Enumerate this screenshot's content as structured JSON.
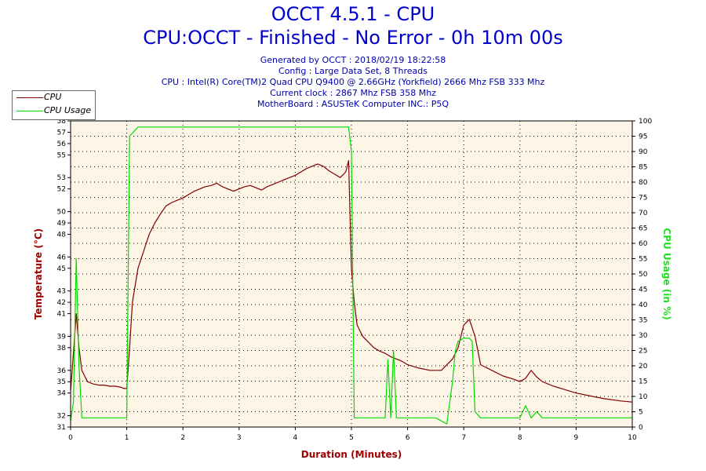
{
  "header": {
    "title": "OCCT 4.5.1 - CPU",
    "subtitle": "CPU:OCCT - Finished - No Error - 0h 10m 00s",
    "info_lines": [
      "Generated by OCCT : 2018/02/19 18:22:58",
      "Config : Large Data Set, 8 Threads",
      "CPU : Intel(R) Core(TM)2 Quad CPU Q9400 @ 2.66GHz (Yorkfield) 2666 Mhz FSB 333 Mhz",
      "Current clock : 2867 Mhz FSB 358 Mhz",
      "MotherBoard : ASUSTeK Computer INC.: P5Q"
    ]
  },
  "legend": [
    {
      "label": "CPU",
      "color": "#800000"
    },
    {
      "label": "CPU Usage",
      "color": "#00dd00"
    }
  ],
  "chart_data": {
    "type": "line",
    "xlabel": "Duration (Minutes)",
    "ylabel_left": "Temperature (°C)",
    "ylabel_right": "CPU Usage (in %)",
    "xlim": [
      0,
      10
    ],
    "ylim_left": [
      31,
      58
    ],
    "ylim_right": [
      0,
      100
    ],
    "x_ticks": [
      0,
      1,
      2,
      3,
      4,
      5,
      6,
      7,
      8,
      9,
      10
    ],
    "y_left_ticks": [
      31,
      32,
      34,
      35,
      36,
      38,
      39,
      41,
      42,
      43,
      45,
      46,
      48,
      49,
      50,
      52,
      53,
      55,
      56,
      57,
      58
    ],
    "y_right_ticks": [
      0,
      5,
      10,
      15,
      20,
      25,
      30,
      35,
      40,
      45,
      50,
      55,
      60,
      65,
      70,
      75,
      80,
      85,
      90,
      95,
      100
    ],
    "grid": true,
    "series": [
      {
        "name": "CPU",
        "axis": "left",
        "color": "#800000",
        "x": [
          0,
          0.05,
          0.1,
          0.15,
          0.2,
          0.25,
          0.3,
          0.4,
          0.5,
          0.6,
          0.7,
          0.8,
          0.9,
          0.95,
          1.0,
          1.05,
          1.1,
          1.2,
          1.3,
          1.4,
          1.5,
          1.6,
          1.7,
          1.8,
          1.9,
          2.0,
          2.1,
          2.2,
          2.3,
          2.4,
          2.5,
          2.6,
          2.7,
          2.8,
          2.9,
          3.0,
          3.1,
          3.2,
          3.3,
          3.4,
          3.5,
          3.6,
          3.7,
          3.8,
          3.9,
          4.0,
          4.1,
          4.2,
          4.3,
          4.4,
          4.5,
          4.6,
          4.7,
          4.8,
          4.9,
          4.95,
          5.0,
          5.05,
          5.1,
          5.2,
          5.3,
          5.4,
          5.5,
          5.6,
          5.7,
          5.8,
          5.9,
          6.0,
          6.2,
          6.4,
          6.6,
          6.8,
          6.9,
          7.0,
          7.1,
          7.2,
          7.3,
          7.5,
          7.7,
          7.9,
          8.0,
          8.1,
          8.2,
          8.3,
          8.4,
          8.6,
          8.8,
          9.0,
          9.2,
          9.5,
          9.8,
          10.0
        ],
        "y": [
          34.2,
          37.5,
          41,
          38,
          36,
          35.5,
          35,
          34.8,
          34.7,
          34.7,
          34.6,
          34.6,
          34.5,
          34.4,
          34.4,
          38,
          42,
          45,
          46.5,
          48,
          49,
          49.8,
          50.5,
          50.8,
          51,
          51.2,
          51.5,
          51.8,
          52,
          52.2,
          52.3,
          52.5,
          52.2,
          52,
          51.8,
          52,
          52.2,
          52.3,
          52.1,
          51.9,
          52.2,
          52.4,
          52.6,
          52.8,
          53,
          53.2,
          53.5,
          53.8,
          54,
          54.2,
          54,
          53.6,
          53.3,
          53,
          53.5,
          54.5,
          45,
          42,
          40,
          39,
          38.5,
          38,
          37.7,
          37.5,
          37.2,
          37,
          36.8,
          36.5,
          36.2,
          36,
          36,
          37,
          38,
          40,
          40.5,
          39,
          36.5,
          36,
          35.5,
          35.2,
          35,
          35.3,
          36,
          35.4,
          35,
          34.6,
          34.3,
          34,
          33.8,
          33.5,
          33.3,
          33.2
        ]
      },
      {
        "name": "CPU Usage",
        "axis": "right",
        "color": "#00dd00",
        "x": [
          0,
          0.05,
          0.1,
          0.15,
          0.2,
          0.3,
          0.5,
          0.8,
          0.95,
          1.0,
          1.05,
          1.2,
          1.5,
          1.8,
          2.0,
          2.1,
          2.2,
          2.3,
          2.4,
          2.5,
          2.7,
          2.9,
          3.0,
          3.2,
          3.4,
          3.6,
          3.8,
          4.0,
          4.2,
          4.4,
          4.6,
          4.8,
          4.95,
          5.0,
          5.05,
          5.2,
          5.5,
          5.6,
          5.65,
          5.7,
          5.75,
          5.8,
          6.0,
          6.5,
          6.7,
          6.8,
          6.85,
          6.9,
          7.0,
          7.1,
          7.15,
          7.2,
          7.3,
          7.6,
          8.0,
          8.1,
          8.2,
          8.3,
          8.4,
          8.6,
          9.0,
          9.5,
          10.0
        ],
        "y": [
          2,
          8,
          55,
          20,
          3,
          3,
          3,
          3,
          3,
          3,
          95,
          98,
          98,
          98,
          98,
          98,
          98,
          98,
          98,
          98,
          98,
          98,
          98,
          98,
          98,
          98,
          98,
          98,
          98,
          98,
          98,
          98,
          98,
          90,
          3,
          3,
          3,
          3,
          22,
          3,
          25,
          3,
          3,
          3,
          1,
          15,
          25,
          28,
          29,
          29,
          28,
          5,
          3,
          3,
          3,
          7,
          3,
          5,
          3,
          3,
          3,
          3,
          3
        ]
      }
    ]
  }
}
